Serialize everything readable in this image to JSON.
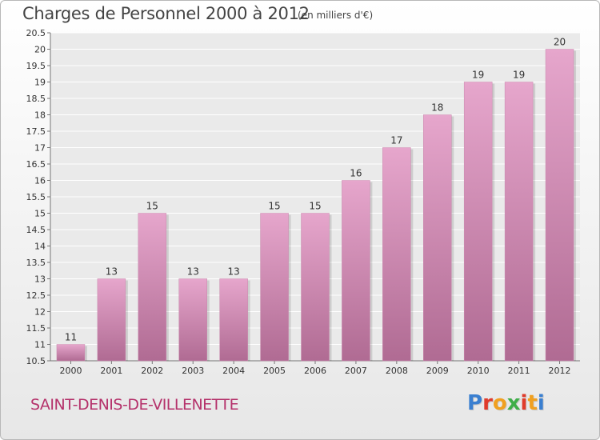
{
  "header": {
    "title": "Charges de Personnel 2000 à 2012",
    "subtitle": "(en milliers d'€)"
  },
  "footer": {
    "commune": "SAINT-DENIS-DE-VILLENETTE",
    "logo": {
      "text": "Proxiti",
      "letter_colors": [
        "#3a7fd0",
        "#e03b2b",
        "#f0a020",
        "#3fae49",
        "#e03b2b",
        "#f0a020",
        "#3a7fd0"
      ]
    }
  },
  "chart_data": {
    "type": "bar",
    "title": "Charges de Personnel 2000 à 2012",
    "subtitle": "(en milliers d'€)",
    "categories": [
      "2000",
      "2001",
      "2002",
      "2003",
      "2004",
      "2005",
      "2006",
      "2007",
      "2008",
      "2009",
      "2010",
      "2011",
      "2012"
    ],
    "values": [
      11,
      13,
      15,
      13,
      13,
      15,
      15,
      16,
      17,
      18,
      19,
      19,
      20
    ],
    "data_labels": [
      "11",
      "13",
      "15",
      "13",
      "13",
      "15",
      "15",
      "16",
      "17",
      "18",
      "19",
      "19",
      "20"
    ],
    "ylim": [
      10.5,
      20.5
    ],
    "yticks": [
      10.5,
      11,
      11.5,
      12,
      12.5,
      13,
      13.5,
      14,
      14.5,
      15,
      15.5,
      16,
      16.5,
      17,
      17.5,
      18,
      18.5,
      19,
      19.5,
      20,
      20.5
    ],
    "ytick_labels": [
      "10.5",
      "11",
      "11.5",
      "12",
      "12.5",
      "13",
      "13.5",
      "14",
      "14.5",
      "15",
      "15.5",
      "16",
      "16.5",
      "17",
      "17.5",
      "18",
      "18.5",
      "19",
      "19.5",
      "20",
      "20.5"
    ],
    "grid": true,
    "colors": {
      "bar_light": "#e6a6cc",
      "bar_dark": "#b06b93",
      "grid": "#ffffff"
    }
  }
}
